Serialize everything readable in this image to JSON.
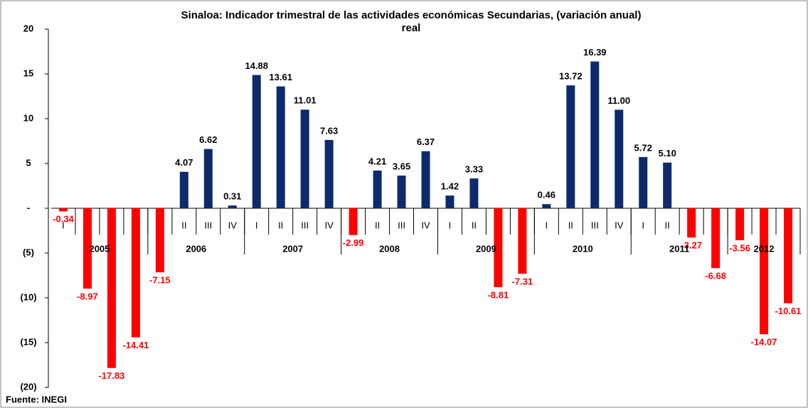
{
  "chart_data": {
    "type": "bar",
    "title": "Sinaloa: Indicador trimestral  de las actividades económicas Secundarias, (variación anual)",
    "subtitle": "real",
    "source": "Fuente: INEGI",
    "categories": [
      "I",
      "II",
      "III",
      "IV",
      "I",
      "II",
      "III",
      "IV",
      "I",
      "II",
      "III",
      "IV",
      "I",
      "II",
      "III",
      "IV",
      "I",
      "II",
      "III",
      "IV",
      "I",
      "II",
      "III",
      "IV",
      "I",
      "II",
      "III",
      "IV",
      "I",
      "II",
      "III"
    ],
    "years": [
      "2005",
      "2006",
      "2007",
      "2008",
      "2009",
      "2010",
      "2011",
      "2012"
    ],
    "values": [
      -0.34,
      -8.97,
      -17.83,
      -14.41,
      -7.15,
      4.07,
      6.62,
      0.31,
      14.88,
      13.61,
      11.01,
      7.63,
      -2.99,
      4.21,
      3.65,
      6.37,
      1.42,
      3.33,
      -8.81,
      -7.31,
      0.46,
      13.72,
      16.39,
      11.0,
      5.72,
      5.1,
      -3.27,
      -6.68,
      -3.56,
      -14.07,
      -10.61
    ],
    "value_labels": [
      "-0.34",
      "-8.97",
      "-17.83",
      "-14.41",
      "-7.15",
      "4.07",
      "6.62",
      "0.31",
      "14.88",
      "13.61",
      "11.01",
      "7.63",
      "-2.99",
      "4.21",
      "3.65",
      "6.37",
      "1.42",
      "3.33",
      "-8.81",
      "-7.31",
      "0.46",
      "13.72",
      "16.39",
      "11.00",
      "5.72",
      "5.10",
      "-3.27",
      "-6.68",
      "-3.56",
      "-14.07",
      "-10.61"
    ],
    "positive_color": "#0d2a6b",
    "negative_color": "#ff0000",
    "ylim": [
      -20,
      20
    ],
    "yticks": [
      {
        "value": -20,
        "label": "(20)"
      },
      {
        "value": -15,
        "label": "(15)"
      },
      {
        "value": -10,
        "label": "(10)"
      },
      {
        "value": -5,
        "label": "(5)"
      },
      {
        "value": 0,
        "label": "-"
      },
      5,
      10,
      15,
      20
    ]
  }
}
